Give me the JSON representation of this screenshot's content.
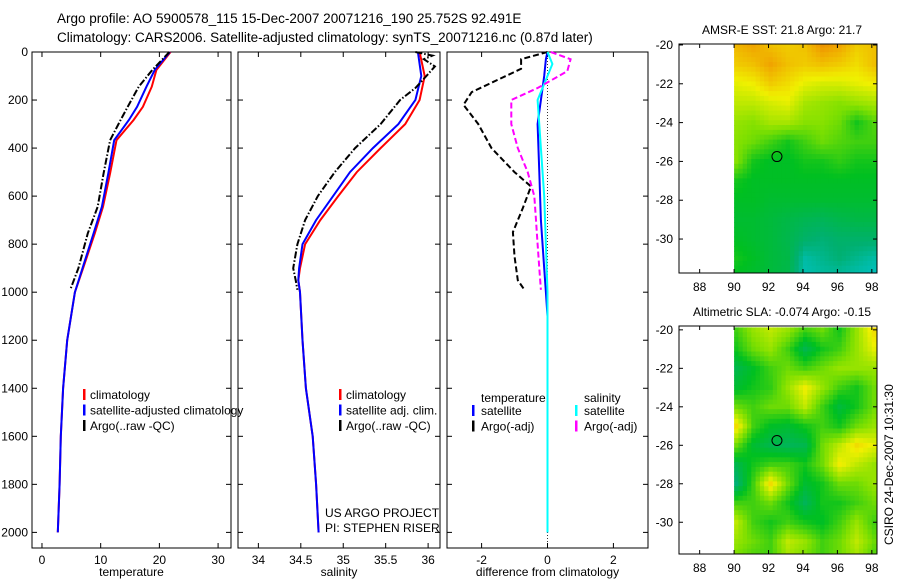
{
  "header": {
    "line1": "Argo profile: AO 5900578_115 15-Dec-2007 20071216_190 25.752S 92.491E",
    "line2": "Climatology: CARS2006. Satellite-adjusted climatology: synTS_20071216.nc (0.87d later)"
  },
  "credit": {
    "project": "US ARGO PROJECT",
    "pi": "PI: STEPHEN RISER",
    "stamp": "CSIRO 24-Dec-2007 10:31:30"
  },
  "colors": {
    "climatology": "#ff0000",
    "satellite": "#0000ff",
    "argo": "#000000",
    "sal_satellite": "#00ffff",
    "sal_argo": "#ff00ff"
  },
  "chart_data": [
    {
      "id": "temperature",
      "type": "line",
      "xlabel": "temperature",
      "xlim": [
        -1.7,
        32.2
      ],
      "ylim": [
        0,
        2065
      ],
      "xticks": [
        0,
        10,
        20,
        30
      ],
      "yticks": [
        0,
        200,
        400,
        600,
        800,
        1000,
        1200,
        1400,
        1600,
        1800,
        2000
      ],
      "y_reversed": true,
      "legend": [
        "climatology",
        "satellite-adjusted climatology",
        "Argo(..raw -QC)"
      ],
      "series": [
        {
          "name": "climatology",
          "color": "#ff0000",
          "style": "solid",
          "depth": [
            0,
            75,
            144,
            228,
            283,
            367,
            505,
            644,
            755,
            900,
            1000,
            1200,
            1400,
            1600,
            1800,
            2000
          ],
          "values": [
            21.9,
            19.5,
            18.7,
            17.2,
            15.6,
            12.7,
            11.6,
            10.4,
            9.0,
            7.0,
            5.6,
            4.3,
            3.6,
            3.2,
            3.0,
            2.7
          ]
        },
        {
          "name": "satellite-adjusted climatology",
          "color": "#0000ff",
          "style": "solid",
          "depth": [
            0,
            75,
            144,
            228,
            283,
            367,
            505,
            644,
            755,
            900,
            1000,
            1200,
            1400,
            1600,
            1800,
            2000
          ],
          "values": [
            21.8,
            19.2,
            17.8,
            16.2,
            14.8,
            12.3,
            11.3,
            10.2,
            8.8,
            6.9,
            5.6,
            4.3,
            3.6,
            3.2,
            3.0,
            2.7
          ]
        },
        {
          "name": "Argo(..raw -QC)",
          "color": "#000000",
          "style": "dashdot",
          "depth": [
            0,
            75,
            144,
            228,
            283,
            367,
            505,
            644,
            755,
            900,
            990
          ],
          "values": [
            21.7,
            18.8,
            16.5,
            14.6,
            13.4,
            11.6,
            10.5,
            9.5,
            7.8,
            6.2,
            4.8
          ]
        }
      ]
    },
    {
      "id": "salinity",
      "type": "line",
      "xlabel": "salinity",
      "xlim": [
        33.76,
        36.14
      ],
      "ylim": [
        0,
        2065
      ],
      "xticks": [
        34,
        34.5,
        35,
        35.5,
        36
      ],
      "y_reversed": true,
      "legend": [
        "climatology",
        "satellite adj. clim.",
        "Argo(..raw -QC)"
      ],
      "series": [
        {
          "name": "climatology",
          "color": "#ff0000",
          "style": "solid",
          "depth": [
            0,
            100,
            200,
            300,
            400,
            500,
            600,
            700,
            800,
            900,
            950,
            1000,
            1200,
            1400,
            1600,
            1800,
            2000
          ],
          "values": [
            35.9,
            35.96,
            35.9,
            35.73,
            35.44,
            35.16,
            34.94,
            34.73,
            34.55,
            34.49,
            34.47,
            34.49,
            34.52,
            34.56,
            34.64,
            34.68,
            34.71
          ]
        },
        {
          "name": "satellite adj. clim.",
          "color": "#0000ff",
          "style": "solid",
          "depth": [
            0,
            100,
            200,
            300,
            400,
            500,
            600,
            700,
            800,
            900,
            950,
            1000,
            1200,
            1400,
            1600,
            1800,
            2000
          ],
          "values": [
            35.88,
            35.92,
            35.85,
            35.65,
            35.35,
            35.08,
            34.88,
            34.68,
            34.52,
            34.48,
            34.47,
            34.49,
            34.52,
            34.56,
            34.64,
            34.68,
            34.71
          ]
        },
        {
          "name": "Argo(..raw -QC)",
          "color": "#000000",
          "style": "dashdot",
          "depth": [
            0,
            15,
            30,
            60,
            100,
            150,
            200,
            300,
            400,
            500,
            600,
            700,
            800,
            900,
            950,
            990
          ],
          "values": [
            35.85,
            36.05,
            35.95,
            36.08,
            35.98,
            35.85,
            35.67,
            35.44,
            35.14,
            34.9,
            34.7,
            34.55,
            34.46,
            34.41,
            34.44,
            34.46
          ]
        }
      ]
    },
    {
      "id": "difference",
      "type": "line",
      "xlabel": "difference from climatology",
      "xlim": [
        -3.05,
        3.05
      ],
      "ylim": [
        0,
        2065
      ],
      "xticks": [
        -2,
        0,
        2
      ],
      "y_reversed": true,
      "legend_headers": [
        "temperature",
        "salinity"
      ],
      "legend": [
        "satellite",
        "Argo(-adj)",
        "satellite",
        "Argo(-adj)"
      ],
      "series": [
        {
          "name": "temperature satellite",
          "color": "#0000ff",
          "style": "solid",
          "depth": [
            0,
            30,
            100,
            300,
            500,
            700,
            900,
            1000,
            1100,
            2000
          ],
          "values": [
            0,
            -0.05,
            -0.1,
            -0.3,
            -0.25,
            -0.2,
            -0.1,
            -0.05,
            0,
            0
          ]
        },
        {
          "name": "temperature Argo(-adj)",
          "color": "#000000",
          "style": "dashed",
          "depth": [
            0,
            30,
            70,
            167,
            220,
            300,
            400,
            500,
            560,
            650,
            750,
            850,
            950,
            990
          ],
          "values": [
            0,
            -0.8,
            -0.8,
            -2.3,
            -2.55,
            -2.1,
            -1.7,
            -1.0,
            -0.5,
            -0.75,
            -1.05,
            -1.0,
            -0.9,
            -0.7
          ]
        },
        {
          "name": "salinity satellite",
          "color": "#00ffff",
          "style": "solid",
          "depth": [
            0,
            50,
            200,
            400,
            600,
            800,
            1000,
            2000
          ],
          "values": [
            0,
            0.15,
            -0.3,
            -0.2,
            -0.1,
            -0.05,
            0,
            0
          ]
        },
        {
          "name": "salinity Argo(-adj)",
          "color": "#ff00ff",
          "style": "dashed",
          "depth": [
            0,
            30,
            80,
            150,
            200,
            300,
            400,
            500,
            600,
            700,
            800,
            900,
            990
          ],
          "values": [
            0.1,
            0.7,
            0.6,
            -0.3,
            -1.1,
            -1.1,
            -0.9,
            -0.6,
            -0.4,
            -0.35,
            -0.3,
            -0.25,
            -0.2
          ]
        }
      ]
    },
    {
      "id": "sst_map",
      "type": "heatmap",
      "title": "AMSR-E SST: 21.8 Argo: 21.7",
      "xlim": [
        86.8,
        98.3
      ],
      "ylim": [
        -31.75,
        -19.95
      ],
      "xticks": [
        88,
        90,
        92,
        94,
        96,
        98
      ],
      "yticks": [
        -20,
        -22,
        -24,
        -26,
        -28,
        -30
      ],
      "lon": [
        90,
        91,
        92,
        93,
        94,
        95,
        96,
        97,
        98
      ],
      "lat": [
        -20,
        -21,
        -22,
        -23,
        -24,
        -25,
        -26,
        -27,
        -28,
        -29,
        -30,
        -31,
        -32
      ],
      "color_index": [
        [
          0.82,
          0.85,
          0.8,
          0.78,
          0.8,
          0.88,
          0.85,
          0.78,
          0.8
        ],
        [
          0.78,
          0.8,
          0.85,
          0.8,
          0.78,
          0.8,
          0.78,
          0.75,
          0.8
        ],
        [
          0.7,
          0.72,
          0.78,
          0.75,
          0.7,
          0.68,
          0.68,
          0.7,
          0.72
        ],
        [
          0.65,
          0.65,
          0.68,
          0.7,
          0.62,
          0.6,
          0.58,
          0.6,
          0.62
        ],
        [
          0.6,
          0.58,
          0.62,
          0.62,
          0.58,
          0.58,
          0.55,
          0.45,
          0.52
        ],
        [
          0.58,
          0.55,
          0.5,
          0.45,
          0.5,
          0.55,
          0.52,
          0.5,
          0.5
        ],
        [
          0.58,
          0.45,
          0.42,
          0.42,
          0.45,
          0.45,
          0.48,
          0.45,
          0.45
        ],
        [
          0.45,
          0.42,
          0.42,
          0.42,
          0.42,
          0.42,
          0.42,
          0.42,
          0.42
        ],
        [
          0.42,
          0.42,
          0.4,
          0.4,
          0.4,
          0.4,
          0.4,
          0.4,
          0.4
        ],
        [
          0.4,
          0.4,
          0.38,
          0.36,
          0.34,
          0.33,
          0.35,
          0.36,
          0.36
        ],
        [
          0.42,
          0.4,
          0.38,
          0.35,
          0.3,
          0.28,
          0.3,
          0.3,
          0.3
        ],
        [
          0.45,
          0.42,
          0.38,
          0.36,
          0.22,
          0.25,
          0.28,
          0.25,
          0.22
        ],
        [
          0.42,
          0.4,
          0.38,
          0.35,
          0.2,
          0.22,
          0.22,
          0.2,
          0.18
        ]
      ],
      "marker": {
        "lon": 92.49,
        "lat": -25.75
      }
    },
    {
      "id": "sla_map",
      "type": "heatmap",
      "title": "Altimetric SLA: -0.074 Argo: -0.15",
      "xlim": [
        86.8,
        98.3
      ],
      "ylim": [
        -31.65,
        -19.8
      ],
      "xticks": [
        88,
        90,
        92,
        94,
        96,
        98
      ],
      "yticks": [
        -20,
        -22,
        -24,
        -26,
        -28,
        -30
      ],
      "lon": [
        90,
        91,
        92,
        93,
        94,
        95,
        96,
        97,
        98
      ],
      "lat": [
        -20,
        -21,
        -22,
        -23,
        -24,
        -25,
        -26,
        -27,
        -28,
        -29,
        -30,
        -31,
        -32
      ],
      "color_index": [
        [
          0.5,
          0.6,
          0.65,
          0.6,
          0.5,
          0.55,
          0.45,
          0.6,
          0.75
        ],
        [
          0.45,
          0.55,
          0.6,
          0.5,
          0.35,
          0.45,
          0.5,
          0.6,
          0.7
        ],
        [
          0.35,
          0.42,
          0.5,
          0.55,
          0.5,
          0.55,
          0.6,
          0.6,
          0.6
        ],
        [
          0.4,
          0.45,
          0.48,
          0.6,
          0.72,
          0.6,
          0.5,
          0.45,
          0.55
        ],
        [
          0.55,
          0.5,
          0.55,
          0.55,
          0.65,
          0.5,
          0.38,
          0.45,
          0.55
        ],
        [
          0.75,
          0.5,
          0.42,
          0.4,
          0.45,
          0.5,
          0.45,
          0.55,
          0.6
        ],
        [
          0.55,
          0.4,
          0.35,
          0.33,
          0.35,
          0.55,
          0.65,
          0.75,
          0.7
        ],
        [
          0.35,
          0.45,
          0.5,
          0.5,
          0.45,
          0.55,
          0.72,
          0.65,
          0.6
        ],
        [
          0.28,
          0.5,
          0.75,
          0.55,
          0.4,
          0.45,
          0.55,
          0.55,
          0.6
        ],
        [
          0.5,
          0.5,
          0.55,
          0.45,
          0.33,
          0.45,
          0.45,
          0.5,
          0.55
        ],
        [
          0.65,
          0.5,
          0.45,
          0.5,
          0.45,
          0.42,
          0.5,
          0.6,
          0.5
        ],
        [
          0.6,
          0.55,
          0.5,
          0.65,
          0.6,
          0.5,
          0.55,
          0.65,
          0.55
        ],
        [
          0.55,
          0.5,
          0.5,
          0.6,
          0.55,
          0.5,
          0.55,
          0.6,
          0.5
        ]
      ],
      "marker": {
        "lon": 92.49,
        "lat": -25.75
      }
    }
  ],
  "colormap": [
    "#0070ff",
    "#00c8e0",
    "#00b070",
    "#00c020",
    "#80e000",
    "#f0f000",
    "#f0a000",
    "#d05800"
  ]
}
